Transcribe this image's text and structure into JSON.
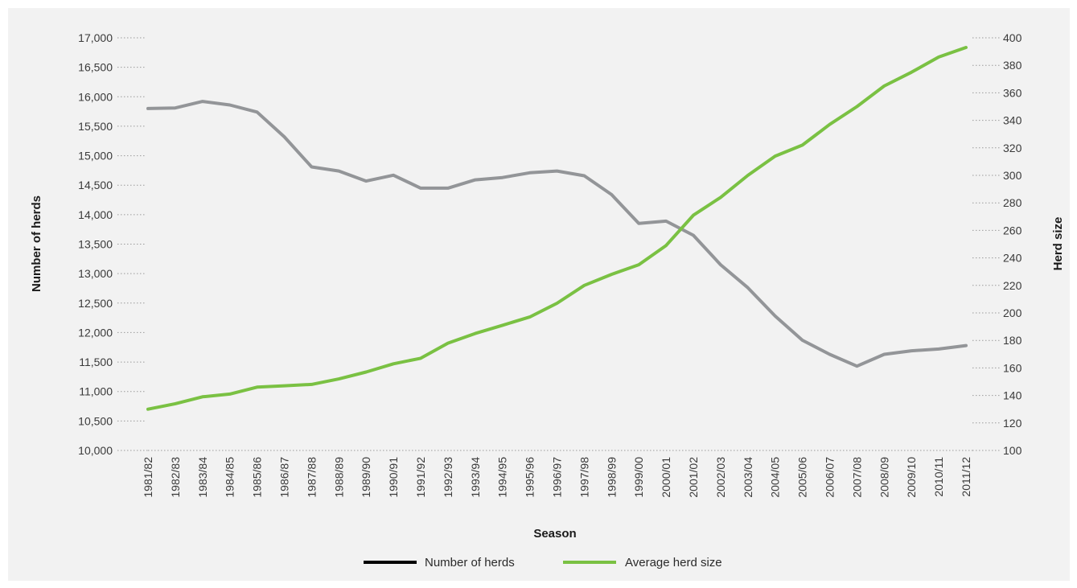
{
  "chart_data": {
    "type": "line",
    "title": "",
    "xlabel": "Season",
    "ylabel_left": "Number of herds",
    "ylabel_right": "Herd size",
    "categories": [
      "1981/82",
      "1982/83",
      "1983/84",
      "1984/85",
      "1985/86",
      "1986/87",
      "1987/88",
      "1988/89",
      "1989/90",
      "1990/91",
      "1991/92",
      "1992/93",
      "1993/94",
      "1994/95",
      "1995/96",
      "1996/97",
      "1997/98",
      "1998/99",
      "1999/00",
      "2000/01",
      "2001/02",
      "2002/03",
      "2003/04",
      "2004/05",
      "2005/06",
      "2006/07",
      "2007/08",
      "2008/09",
      "2009/10",
      "2010/11",
      "2011/12"
    ],
    "y_left": {
      "min": 10000,
      "max": 17000,
      "step": 500,
      "tick_labels": [
        "10,000",
        "10,500",
        "11,000",
        "11,500",
        "12,000",
        "12,500",
        "13,000",
        "13,500",
        "14,000",
        "14,500",
        "15,000",
        "15,500",
        "16,000",
        "16,500",
        "17,000"
      ]
    },
    "y_right": {
      "min": 100,
      "max": 400,
      "step": 20,
      "tick_labels": [
        "100",
        "120",
        "140",
        "160",
        "180",
        "200",
        "220",
        "240",
        "260",
        "280",
        "300",
        "320",
        "340",
        "360",
        "380",
        "400"
      ]
    },
    "grid": "dotted tick leaders",
    "legend_position": "bottom-center",
    "series": [
      {
        "name": "Number of herds",
        "axis": "left",
        "color": "#939598",
        "legend_color": "#000000",
        "values": [
          15800,
          15810,
          15920,
          15860,
          15740,
          15320,
          14810,
          14740,
          14570,
          14670,
          14450,
          14450,
          14590,
          14630,
          14710,
          14740,
          14660,
          14340,
          13850,
          13890,
          13650,
          13150,
          12760,
          12280,
          11870,
          11630,
          11430,
          11630,
          11690,
          11720,
          11780
        ]
      },
      {
        "name": "Average herd size",
        "axis": "right",
        "color": "#7ac143",
        "legend_color": "#7ac143",
        "values": [
          130,
          134,
          139,
          141,
          146,
          147,
          148,
          152,
          157,
          163,
          167,
          178,
          185,
          191,
          197,
          207,
          220,
          228,
          235,
          249,
          271,
          284,
          300,
          314,
          322,
          337,
          350,
          365,
          375,
          386,
          393
        ]
      }
    ]
  }
}
